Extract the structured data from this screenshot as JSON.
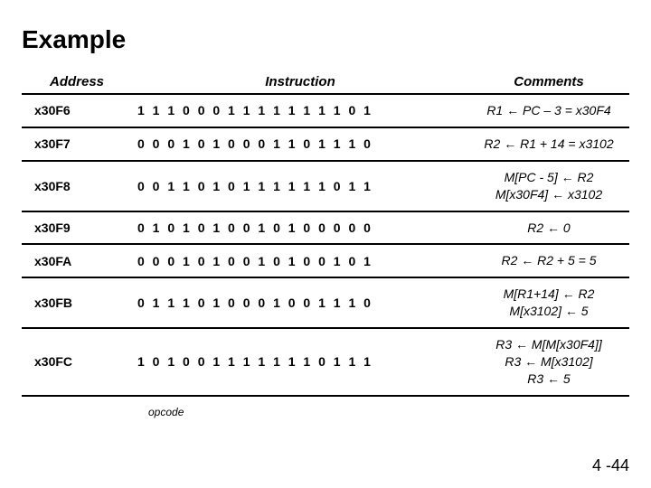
{
  "title": "Example",
  "headers": {
    "address": "Address",
    "instruction": "Instruction",
    "comments": "Comments"
  },
  "rows": [
    {
      "address": "x30F6",
      "instruction": "1 1 1 0 0 0 1 1 1 1 1 1 1 1 0 1",
      "comment": "R1 ← PC – 3 = x30F4"
    },
    {
      "address": "x30F7",
      "instruction": "0 0 0 1 0 1 0 0 0 1 1 0 1 1 1 0",
      "comment": "R2 ← R1 + 14 = x3102"
    },
    {
      "address": "x30F8",
      "instruction": "0 0 1 1 0 1 0 1 1 1 1 1 1 0 1 1",
      "comment": "M[PC - 5] ← R2\nM[x30F4] ← x3102"
    },
    {
      "address": "x30F9",
      "instruction": "0 1 0 1 0 1 0 0 1 0 1 0 0 0 0 0",
      "comment": "R2 ← 0"
    },
    {
      "address": "x30FA",
      "instruction": "0 0 0 1 0 1 0 0 1 0 1 0 0 1 0 1",
      "comment": "R2 ← R2 + 5 = 5"
    },
    {
      "address": "x30FB",
      "instruction": "0 1 1 1 0 1 0 0 0 1 0 0 1 1 1 0",
      "comment": "M[R1+14] ← R2\nM[x3102] ← 5"
    },
    {
      "address": "x30FC",
      "instruction": "1 0 1 0 0 1 1 1 1 1 1 1 0 1 1 1",
      "comment": "R3 ← M[M[x30F4]]\nR3 ← M[x3102]\nR3 ← 5"
    }
  ],
  "opcode_label": "opcode",
  "page_number": "4 -44",
  "colors": {
    "text": "#000000",
    "background": "#ffffff",
    "border": "#000000"
  },
  "fonts": {
    "title_size": 28,
    "header_size": 15,
    "cell_size": 14,
    "opcode_size": 12,
    "page_num_size": 18
  }
}
